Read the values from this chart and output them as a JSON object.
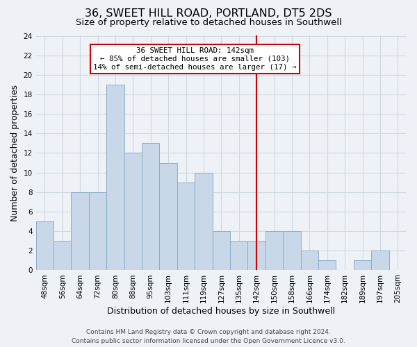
{
  "title": "36, SWEET HILL ROAD, PORTLAND, DT5 2DS",
  "subtitle": "Size of property relative to detached houses in Southwell",
  "xlabel": "Distribution of detached houses by size in Southwell",
  "ylabel": "Number of detached properties",
  "bin_labels": [
    "48sqm",
    "56sqm",
    "64sqm",
    "72sqm",
    "80sqm",
    "88sqm",
    "95sqm",
    "103sqm",
    "111sqm",
    "119sqm",
    "127sqm",
    "135sqm",
    "142sqm",
    "150sqm",
    "158sqm",
    "166sqm",
    "174sqm",
    "182sqm",
    "189sqm",
    "197sqm",
    "205sqm"
  ],
  "bar_heights": [
    5,
    3,
    8,
    8,
    19,
    12,
    13,
    11,
    9,
    10,
    4,
    3,
    3,
    4,
    4,
    2,
    1,
    0,
    1,
    2,
    0
  ],
  "bar_color": "#c8d8e8",
  "bar_edge_color": "#8aafc8",
  "vline_x_idx": 12,
  "vline_color": "#cc0000",
  "annotation_line1": "36 SWEET HILL ROAD: 142sqm",
  "annotation_line2": "← 85% of detached houses are smaller (103)",
  "annotation_line3": "14% of semi-detached houses are larger (17) →",
  "annotation_box_color": "#ffffff",
  "annotation_box_edge_color": "#cc0000",
  "ylim": [
    0,
    24
  ],
  "yticks": [
    0,
    2,
    4,
    6,
    8,
    10,
    12,
    14,
    16,
    18,
    20,
    22,
    24
  ],
  "grid_color": "#d0d8e0",
  "bg_color": "#eef2f7",
  "footer_text": "Contains HM Land Registry data © Crown copyright and database right 2024.\nContains public sector information licensed under the Open Government Licence v3.0.",
  "title_fontsize": 11.5,
  "subtitle_fontsize": 9.5,
  "axis_label_fontsize": 9,
  "tick_fontsize": 7.5,
  "footer_fontsize": 6.5
}
